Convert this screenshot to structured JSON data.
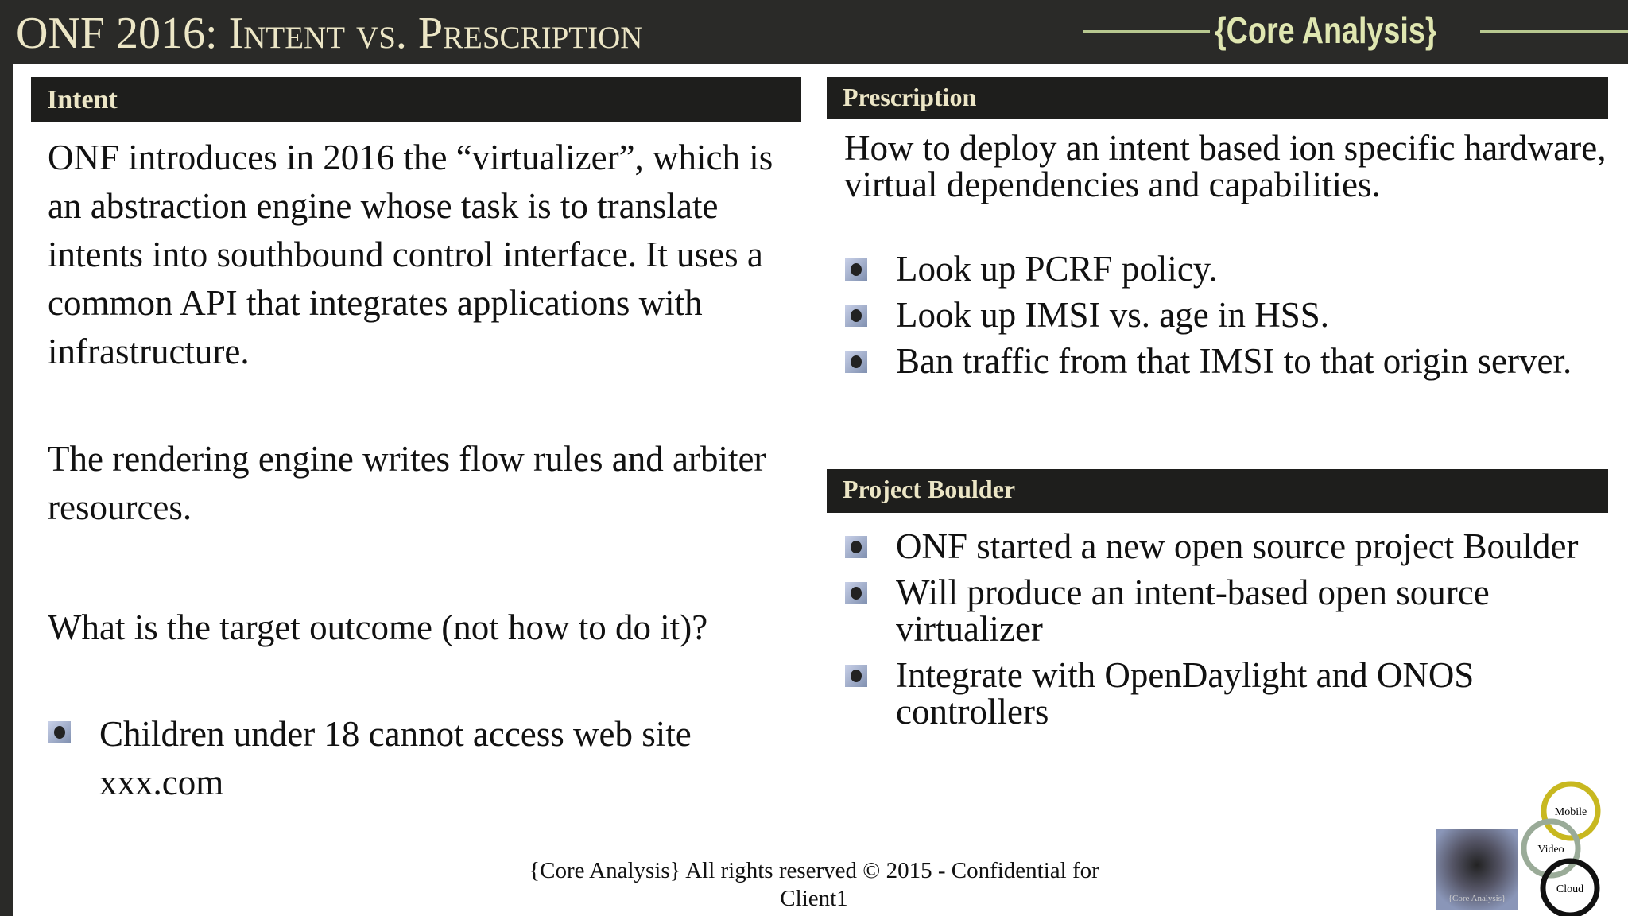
{
  "header": {
    "title": "ONF 2016: Intent vs. Prescription",
    "brand": "{Core Analysis}"
  },
  "intent": {
    "heading": "Intent",
    "paragraphs": [
      "ONF introduces in 2016 the “virtualizer”, which is an abstraction engine whose task is to translate intents into southbound control interface. It uses a common API that integrates applications with infrastructure.",
      "The rendering engine writes flow rules and arbiter resources."
    ],
    "question": "What is the target outcome (not how to do it)?",
    "bullets": [
      "Children under 18 cannot access web site xxx.com"
    ]
  },
  "prescription": {
    "heading": "Prescription",
    "intro": "How to deploy an intent based ion specific hardware, virtual dependencies and capabilities.",
    "bullets": [
      "Look up PCRF policy.",
      "Look up IMSI vs. age in HSS.",
      "Ban traffic from that IMSI to that origin server."
    ]
  },
  "boulder": {
    "heading": "Project Boulder",
    "bullets": [
      "ONF started a new open source project Boulder",
      "Will produce an intent-based open source virtualizer",
      "Integrate with OpenDaylight and ONOS controllers"
    ]
  },
  "footer": {
    "lines": [
      "{Core Analysis} All rights reserved © 2015 - Confidential for",
      "Client1"
    ]
  },
  "logo": {
    "mobile": "Mobile",
    "video": "Video",
    "cloud": "Cloud",
    "caption": "{Core Analysis}"
  }
}
